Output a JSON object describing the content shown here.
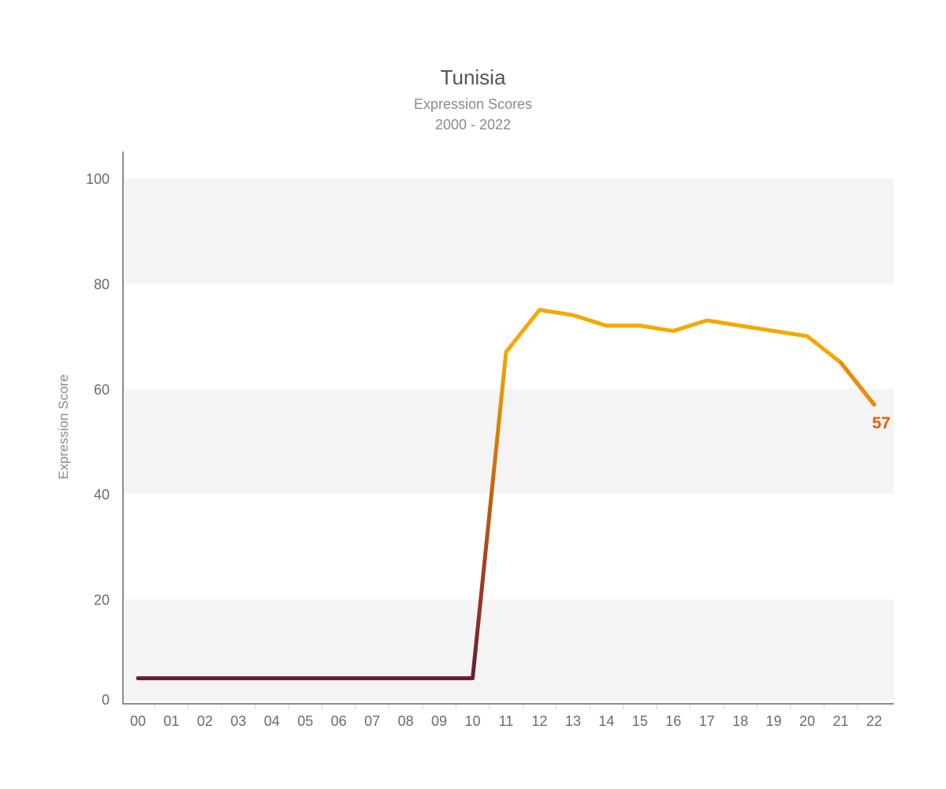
{
  "chart_data": {
    "type": "line",
    "title": "Tunisia",
    "subtitle": "Expression Scores",
    "date_range": "2000 - 2022",
    "xlabel": "",
    "ylabel": "Expression Score",
    "categories": [
      "00",
      "01",
      "02",
      "03",
      "04",
      "05",
      "06",
      "07",
      "08",
      "09",
      "10",
      "11",
      "12",
      "13",
      "14",
      "15",
      "16",
      "17",
      "18",
      "19",
      "20",
      "21",
      "22"
    ],
    "series": [
      {
        "values": [
          5,
          5,
          5,
          5,
          5,
          5,
          5,
          5,
          5,
          5,
          5,
          67,
          75,
          74,
          72,
          72,
          71,
          73,
          72,
          71,
          70,
          65,
          57
        ]
      }
    ],
    "ylim": [
      0,
      100
    ],
    "yticks": [
      0,
      20,
      40,
      60,
      80,
      100
    ],
    "end_label": "57",
    "grid": "alternating horizontal bands",
    "legend": "none",
    "colors": {
      "line_low": "#6b1a33",
      "line_high": "#f5a800",
      "end_label": "#e0600a",
      "band": "#f4f4f4",
      "axis": "#8c8c8c"
    }
  }
}
